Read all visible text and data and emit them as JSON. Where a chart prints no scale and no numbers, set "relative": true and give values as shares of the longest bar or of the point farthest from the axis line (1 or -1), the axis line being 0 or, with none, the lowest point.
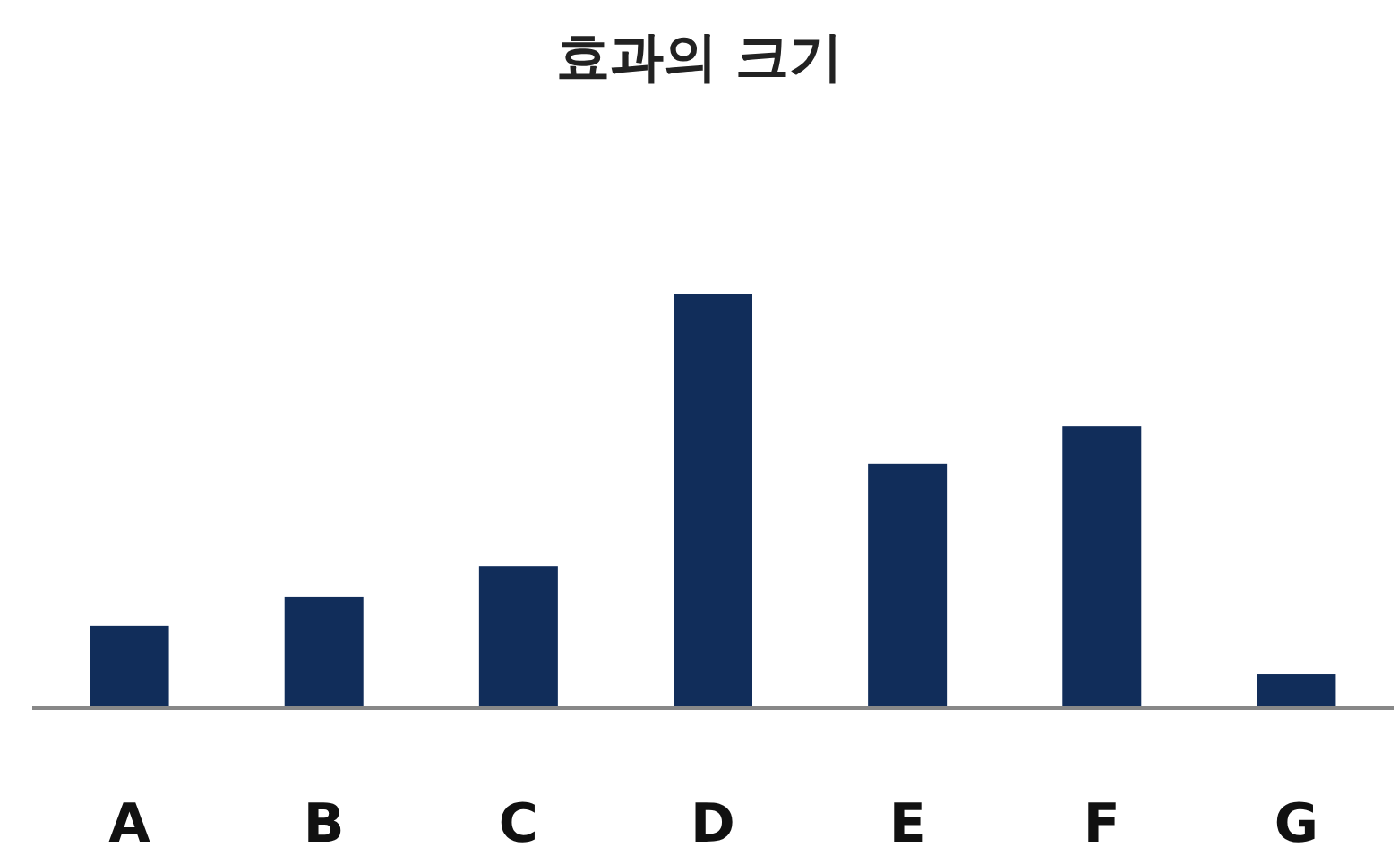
{
  "chart_data": {
    "type": "bar",
    "title": "효과의 크기",
    "categories": [
      "A",
      "B",
      "C",
      "D",
      "E",
      "F",
      "G"
    ],
    "values": [
      0.199,
      0.268,
      0.343,
      1,
      0.59,
      0.68,
      0.082
    ],
    "color": "#112d5a",
    "relative": true
  }
}
